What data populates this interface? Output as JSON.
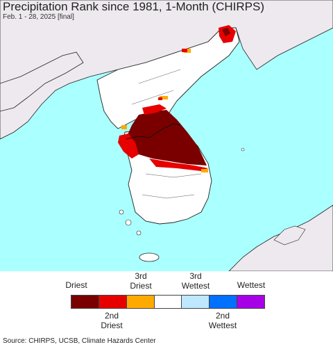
{
  "title": "Precipitation Rank since 1981, 1-Month (CHIRPS)",
  "subtitle": "Feb. 1 - 28, 2025 [final]",
  "legend": {
    "top_labels": [
      {
        "l1": "",
        "l2": "Driest"
      },
      {
        "l1": "3rd",
        "l2": "Driest"
      },
      {
        "l1": "3rd",
        "l2": "Wettest"
      },
      {
        "l1": "",
        "l2": "Wettest"
      }
    ],
    "bottom_labels": [
      {
        "l1": "2nd",
        "l2": "Driest"
      },
      {
        "l1": "2nd",
        "l2": "Wettest"
      }
    ],
    "colors": [
      "#7a0000",
      "#e60000",
      "#ffaa00",
      "#ffffff",
      "#bee8ff",
      "#0070ff",
      "#a800e6"
    ]
  },
  "map_colors": {
    "sea": "#aaffff",
    "land_outside": "#ede9ee",
    "land_normal": "#ffffff",
    "border": "#111111"
  },
  "source": "Source: CHIRPS, UCSB, Climate Hazards Center"
}
